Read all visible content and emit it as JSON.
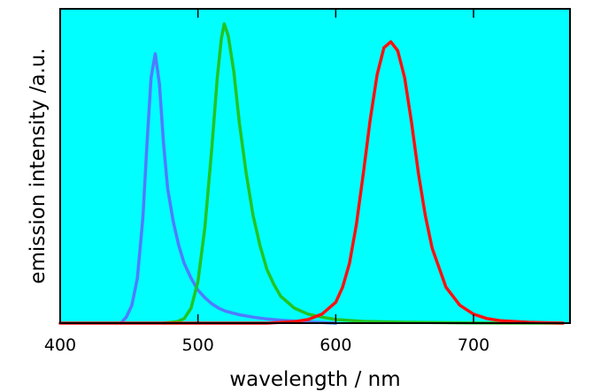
{
  "chart_data": {
    "type": "line",
    "title": "",
    "xlabel": "wavelength / nm",
    "ylabel": "emission intensity /a.u.",
    "xlim": [
      400,
      770
    ],
    "ylim": [
      0,
      1.05
    ],
    "x_ticks": [
      400,
      500,
      600,
      700
    ],
    "x_tick_labels": [
      "400",
      "500",
      "600",
      "700"
    ],
    "y_tick_labels": [],
    "grid": false,
    "legend": "none",
    "background_color": "#00ffff",
    "series": [
      {
        "color": "#4f7bff",
        "peak_nm": 469,
        "peak_intensity": 0.9,
        "x": [
          444,
          448,
          452,
          456,
          460,
          463,
          466,
          469,
          472,
          475,
          478,
          482,
          486,
          490,
          495,
          500,
          505,
          510,
          515,
          520,
          530,
          540,
          550,
          560,
          570,
          580,
          590,
          600
        ],
        "y": [
          0.0,
          0.02,
          0.06,
          0.15,
          0.35,
          0.6,
          0.82,
          0.9,
          0.8,
          0.6,
          0.45,
          0.34,
          0.26,
          0.2,
          0.15,
          0.11,
          0.085,
          0.065,
          0.05,
          0.04,
          0.028,
          0.02,
          0.014,
          0.01,
          0.007,
          0.004,
          0.002,
          0.0
        ]
      },
      {
        "color": "#22c422",
        "peak_nm": 519,
        "peak_intensity": 1.0,
        "x": [
          475,
          485,
          490,
          495,
          500,
          505,
          510,
          514,
          517,
          519,
          522,
          526,
          530,
          535,
          540,
          545,
          550,
          555,
          560,
          570,
          580,
          590,
          600,
          620,
          650,
          700,
          765
        ],
        "y": [
          0.0,
          0.005,
          0.015,
          0.05,
          0.14,
          0.32,
          0.58,
          0.82,
          0.95,
          1.0,
          0.96,
          0.84,
          0.67,
          0.5,
          0.36,
          0.26,
          0.18,
          0.13,
          0.09,
          0.05,
          0.03,
          0.02,
          0.012,
          0.006,
          0.003,
          0.001,
          0.0
        ]
      },
      {
        "color": "#ff1010",
        "peak_nm": 640,
        "peak_intensity": 0.94,
        "x": [
          400,
          550,
          570,
          580,
          590,
          600,
          605,
          610,
          615,
          620,
          625,
          630,
          635,
          640,
          645,
          650,
          655,
          660,
          665,
          670,
          680,
          690,
          700,
          710,
          720,
          740,
          765
        ],
        "y": [
          0.0,
          0.0,
          0.005,
          0.012,
          0.03,
          0.07,
          0.12,
          0.2,
          0.33,
          0.5,
          0.68,
          0.83,
          0.92,
          0.94,
          0.91,
          0.82,
          0.67,
          0.5,
          0.36,
          0.25,
          0.12,
          0.06,
          0.03,
          0.015,
          0.008,
          0.003,
          0.0
        ]
      }
    ]
  }
}
